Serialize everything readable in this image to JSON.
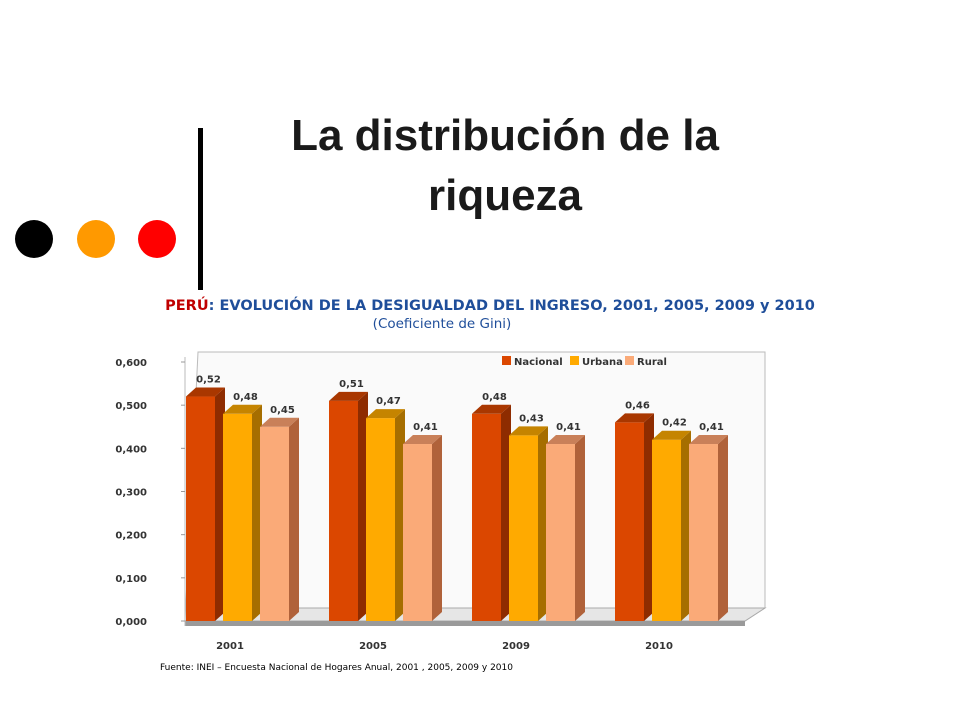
{
  "slide": {
    "title_line1": "La distribución de la",
    "title_line2": "riqueza",
    "decor": {
      "dot_colors": [
        "#000000",
        "#FF9900",
        "#FF0000"
      ],
      "bar_color": "#000000"
    }
  },
  "chart_data": {
    "type": "bar",
    "title_prefix": "PERÚ",
    "title_rest": ": EVOLUCIÓN DE LA DESIGUALDAD DEL INGRESO, 2001, 2005, 2009 y 2010",
    "subtitle": "(Coeficiente de Gini)",
    "categories": [
      "2001",
      "2005",
      "2009",
      "2010"
    ],
    "series": [
      {
        "name": "Nacional",
        "values": [
          0.52,
          0.51,
          0.48,
          0.46
        ],
        "labels": [
          "0,52",
          "0,51",
          "0,48",
          "0,46"
        ],
        "color": "#DB4700",
        "side_color": "#8E2C00",
        "top_color": "#A93700"
      },
      {
        "name": "Urbana",
        "values": [
          0.48,
          0.47,
          0.43,
          0.42
        ],
        "labels": [
          "0,48",
          "0,47",
          "0,43",
          "0,42"
        ],
        "color": "#FFAA00",
        "side_color": "#A66E00",
        "top_color": "#C58400"
      },
      {
        "name": "Rural",
        "values": [
          0.45,
          0.41,
          0.41,
          0.41
        ],
        "labels": [
          "0,45",
          "0,41",
          "0,41",
          "0,41"
        ],
        "color": "#FAAA78",
        "side_color": "#B0623A",
        "top_color": "#C98059"
      }
    ],
    "ylim": [
      0,
      0.6
    ],
    "yticks": [
      0,
      0.1,
      0.2,
      0.3,
      0.4,
      0.5,
      0.6
    ],
    "ytick_labels": [
      "0,000",
      "0,100",
      "0,200",
      "0,300",
      "0,400",
      "0,500",
      "0,600"
    ],
    "legend_position": "top-right",
    "grid": false,
    "source": "Fuente: INEI – Encuesta Nacional de Hogares Anual, 2001 , 2005,  2009 y 2010",
    "colors": {
      "title": "#1F4E9A",
      "title_prefix": "#C00000",
      "axis_text": "#333333"
    }
  }
}
